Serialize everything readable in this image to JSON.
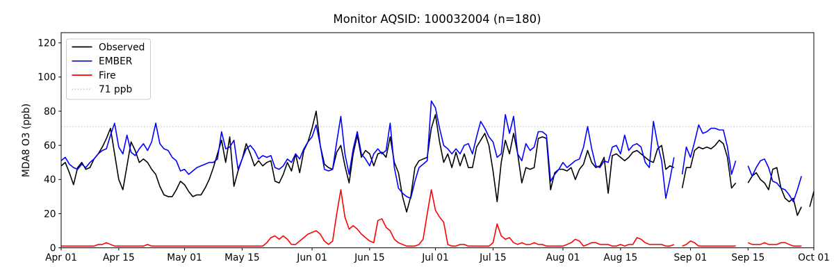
{
  "figure": {
    "title": "Monitor AQSID: 100032004 (n=180)",
    "background": "#ffffff"
  },
  "chart_data": {
    "type": "line",
    "title": "Monitor AQSID: 100032004 (n=180)",
    "xlabel": "",
    "ylabel": "MDA8 O3 (ppb)",
    "ylim": [
      0,
      126
    ],
    "y_ticks": [
      0,
      20,
      40,
      60,
      80,
      100,
      120
    ],
    "x_tick_labels": [
      "Apr 01",
      "Apr 15",
      "May 01",
      "May 15",
      "Jun 01",
      "Jun 15",
      "Jul 01",
      "Jul 15",
      "Aug 01",
      "Aug 15",
      "Sep 01",
      "Sep 15",
      "Oct 01"
    ],
    "x_tick_days": [
      0,
      14,
      30,
      44,
      61,
      75,
      91,
      105,
      122,
      136,
      153,
      167,
      183
    ],
    "x_start_label": "Apr 01",
    "x_end_label": "Oct 01",
    "n_days_axis": 183,
    "sample_count": 180,
    "grid": false,
    "legend": {
      "position": "upper left",
      "entries": [
        "Observed",
        "EMBER",
        "Fire",
        "71 ppb"
      ]
    },
    "threshold": {
      "value": 71,
      "label": "71 ppb",
      "color": "#c8c8c8",
      "linestyle": "dotted"
    },
    "series": [
      {
        "name": "Observed",
        "color": "#000000",
        "values": [
          48,
          50,
          44,
          37,
          47,
          50,
          46,
          47,
          52,
          55,
          59,
          64,
          70,
          55,
          40,
          34,
          48,
          62,
          57,
          50,
          52,
          50,
          46,
          43,
          36,
          31,
          30,
          30,
          34,
          39,
          37,
          33,
          30,
          31,
          31,
          35,
          40,
          47,
          55,
          63,
          50,
          65,
          36,
          45,
          52,
          61,
          55,
          48,
          51,
          48,
          50,
          51,
          39,
          38,
          43,
          50,
          45,
          55,
          44,
          57,
          62,
          70,
          80,
          60,
          49,
          47,
          46,
          56,
          60,
          48,
          38,
          55,
          66,
          53,
          57,
          55,
          48,
          55,
          56,
          53,
          65,
          50,
          44,
          30,
          21,
          30,
          47,
          51,
          52,
          53,
          70,
          78,
          62,
          50,
          55,
          47,
          56,
          48,
          55,
          47,
          47,
          59,
          63,
          67,
          60,
          45,
          27,
          50,
          63,
          55,
          67,
          55,
          38,
          47,
          46,
          47,
          64,
          65,
          64,
          34,
          44,
          46,
          46,
          45,
          47,
          40,
          46,
          49,
          57,
          50,
          47,
          48,
          53,
          32,
          54,
          55,
          53,
          51,
          53,
          56,
          57,
          55,
          53,
          51,
          50,
          58,
          60,
          46,
          48,
          47,
          null,
          35,
          47,
          47,
          57,
          59,
          58,
          59,
          58,
          60,
          63,
          61,
          53,
          35,
          38,
          null,
          null,
          38,
          42,
          44,
          40,
          38,
          34,
          46,
          47,
          35,
          29,
          27,
          29,
          19,
          24,
          null,
          24,
          33
        ]
      },
      {
        "name": "EMBER",
        "color": "#0000ff",
        "values": [
          51,
          53,
          49,
          47,
          46,
          49,
          47,
          50,
          52,
          55,
          57,
          58,
          66,
          73,
          59,
          55,
          66,
          56,
          54,
          58,
          61,
          57,
          62,
          73,
          61,
          58,
          57,
          53,
          51,
          45,
          46,
          43,
          45,
          47,
          48,
          49,
          50,
          50,
          52,
          68,
          58,
          59,
          63,
          46,
          52,
          58,
          60,
          57,
          52,
          54,
          53,
          54,
          47,
          46,
          48,
          52,
          50,
          55,
          52,
          58,
          62,
          65,
          72,
          60,
          46,
          45,
          46,
          62,
          77,
          55,
          43,
          58,
          68,
          55,
          52,
          48,
          55,
          58,
          55,
          57,
          73,
          47,
          35,
          32,
          30,
          29,
          39,
          47,
          49,
          51,
          86,
          82,
          70,
          60,
          58,
          55,
          58,
          55,
          60,
          61,
          55,
          65,
          74,
          70,
          65,
          62,
          53,
          55,
          78,
          67,
          77,
          55,
          51,
          61,
          57,
          59,
          68,
          68,
          66,
          39,
          43,
          46,
          50,
          47,
          49,
          51,
          52,
          59,
          71,
          58,
          48,
          47,
          51,
          50,
          59,
          60,
          55,
          66,
          57,
          60,
          61,
          59,
          50,
          47,
          74,
          61,
          51,
          29,
          40,
          53,
          null,
          43,
          59,
          53,
          62,
          72,
          67,
          68,
          70,
          70,
          69,
          69,
          59,
          43,
          51,
          null,
          null,
          48,
          42,
          47,
          51,
          52,
          47,
          39,
          38,
          35,
          34,
          31,
          27,
          34,
          42,
          null,
          null,
          null
        ]
      },
      {
        "name": "Fire",
        "color": "#ff0000",
        "values": [
          1,
          1,
          1,
          1,
          1,
          1,
          1,
          1,
          1,
          2,
          2,
          3,
          2,
          1,
          1,
          1,
          1,
          1,
          1,
          1,
          1,
          2,
          1,
          1,
          1,
          1,
          1,
          1,
          1,
          1,
          1,
          1,
          1,
          1,
          1,
          1,
          1,
          1,
          1,
          1,
          1,
          1,
          1,
          1,
          1,
          1,
          1,
          1,
          1,
          1,
          3,
          6,
          7,
          5,
          7,
          5,
          2,
          2,
          4,
          6,
          8,
          9,
          10,
          8,
          4,
          2,
          4,
          20,
          34,
          18,
          11,
          13,
          11,
          8,
          6,
          4,
          3,
          16,
          17,
          12,
          10,
          5,
          3,
          2,
          1,
          1,
          1,
          2,
          5,
          20,
          34,
          22,
          18,
          15,
          2,
          1,
          1,
          2,
          2,
          1,
          1,
          1,
          1,
          1,
          1,
          3,
          14,
          7,
          5,
          6,
          3,
          2,
          3,
          2,
          2,
          3,
          2,
          2,
          1,
          1,
          1,
          1,
          1,
          2,
          3,
          5,
          4,
          1,
          2,
          3,
          3,
          2,
          2,
          2,
          1,
          1,
          2,
          1,
          2,
          2,
          6,
          5,
          3,
          2,
          2,
          2,
          2,
          1,
          1,
          2,
          null,
          1,
          2,
          4,
          3,
          1,
          1,
          1,
          1,
          1,
          1,
          1,
          1,
          1,
          1,
          null,
          null,
          3,
          2,
          2,
          2,
          3,
          2,
          2,
          2,
          3,
          3,
          2,
          1,
          1,
          1,
          null,
          null,
          null
        ]
      }
    ]
  }
}
